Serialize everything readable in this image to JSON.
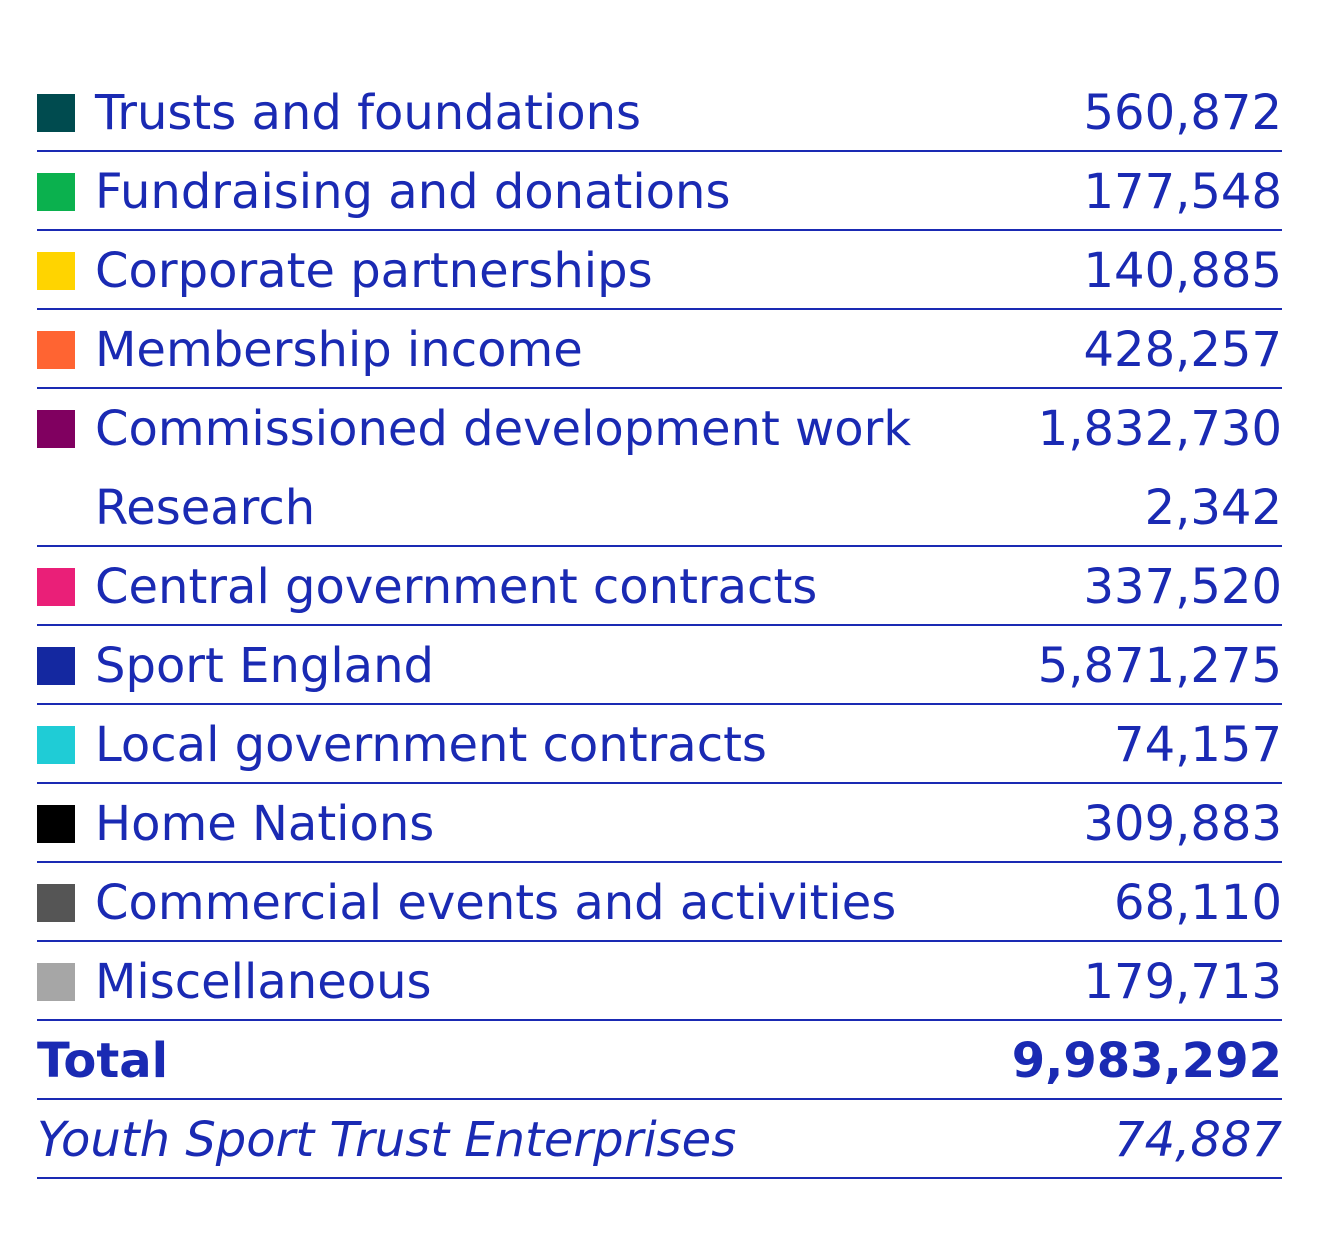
{
  "rows": [
    {
      "label": "Trusts and foundations",
      "value": "560,872",
      "color": "#004b4f",
      "line": true
    },
    {
      "label": "Fundraising and donations",
      "value": "177,548",
      "color": "#0bb14e",
      "line": true
    },
    {
      "label": "Corporate partnerships",
      "value": "140,885",
      "color": "#ffd400",
      "line": true
    },
    {
      "label": "Membership income",
      "value": "428,257",
      "color": "#ff6432",
      "line": true
    },
    {
      "label": "Commissioned development work",
      "value": "1,832,730",
      "color": "#800060",
      "line": false
    },
    {
      "label": "Research",
      "value": "2,342",
      "color": "",
      "line": true
    },
    {
      "label": "Central government contracts",
      "value": "337,520",
      "color": "#ea1f78",
      "line": true
    },
    {
      "label": "Sport England",
      "value": "5,871,275",
      "color": "#1428a0",
      "line": true
    },
    {
      "label": "Local government contracts",
      "value": "74,157",
      "color": "#1fccd6",
      "line": true
    },
    {
      "label": "Home Nations",
      "value": "309,883",
      "color": "#000000",
      "line": true
    },
    {
      "label": "Commercial events and activities",
      "value": "68,110",
      "color": "#555555",
      "line": true
    },
    {
      "label": "Miscellaneous",
      "value": "179,713",
      "color": "#a6a6a6",
      "line": true
    }
  ],
  "total": {
    "label": "Total",
    "value": "9,983,292"
  },
  "enterprise": {
    "label": "Youth Sport Trust Enterprises",
    "value": "74,887"
  },
  "text_color": "#1a2ab3"
}
